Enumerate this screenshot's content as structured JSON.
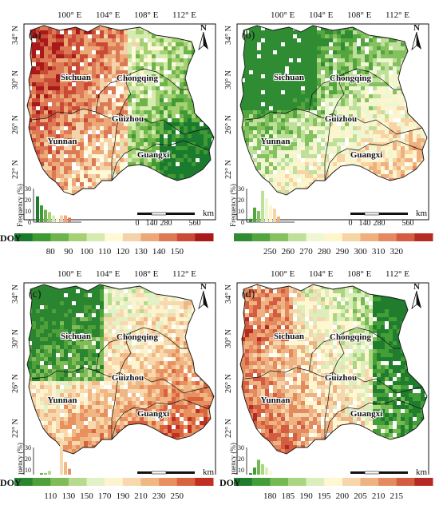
{
  "figure": {
    "top_lon_labels": [
      "100° E",
      "104° E",
      "108° E",
      "112° E"
    ],
    "left_lat_labels": [
      "34° N",
      "30° N",
      "26° N",
      "22° N"
    ],
    "north_label": "N",
    "scalebar_labels": [
      "0",
      "140",
      "280",
      "560"
    ],
    "scalebar_unit": "km",
    "hist_ylabel": "Frequency (%)",
    "hist_ticks": [
      "0",
      "10",
      "20",
      "30"
    ],
    "province_labels": [
      "Sichuan",
      "Chongqing",
      "Guizhou",
      "Yunnan",
      "Guangxi"
    ]
  },
  "panels": [
    {
      "label": "(a)",
      "colors": [
        "#1a7a2e",
        "#3f9a34",
        "#6db44a",
        "#a5d173",
        "#d6ebb0",
        "#fff9d8",
        "#f5d3aa",
        "#eda878",
        "#dd7a55",
        "#c94a35",
        "#a81a1a"
      ],
      "histogram": [
        23,
        15,
        11,
        9,
        6,
        4,
        6,
        6,
        4,
        0,
        0
      ],
      "legend": {
        "title": "DOY",
        "ticks": [
          "80",
          "90",
          "100",
          "110",
          "120",
          "130",
          "140",
          "150"
        ]
      }
    },
    {
      "label": "(b)",
      "colors": [
        "#2f8c33",
        "#53a63e",
        "#86c160",
        "#bfe09a",
        "#eef6d2",
        "#fff5cc",
        "#f7d4a3",
        "#efb07e",
        "#e58a60",
        "#d35c43",
        "#b52c25"
      ],
      "histogram": [
        3,
        13,
        10,
        28,
        21,
        15,
        12,
        5,
        0,
        0,
        0
      ],
      "legend": {
        "title": "",
        "ticks": [
          "250",
          "260",
          "270",
          "280",
          "290",
          "300",
          "310",
          "320"
        ]
      }
    },
    {
      "label": "(c)",
      "colors": [
        "#2a8530",
        "#4fa03a",
        "#7fbc58",
        "#b6da90",
        "#e3f1c7",
        "#fdf4cf",
        "#f8d9ad",
        "#f0b785",
        "#e8905f",
        "#d9623f",
        "#bf3022"
      ],
      "histogram": [
        4,
        7,
        7,
        9,
        0,
        0,
        38,
        17,
        11,
        2,
        0
      ],
      "legend": {
        "title": "DOY",
        "ticks": [
          "110",
          "130",
          "150",
          "170",
          "190",
          "210",
          "230",
          "250"
        ]
      }
    },
    {
      "label": "(d)",
      "colors": [
        "#1f7d2d",
        "#439e37",
        "#74ba53",
        "#aad682",
        "#dbeebb",
        "#fff7d2",
        "#f6d6ac",
        "#eeb283",
        "#e48a5f",
        "#d35c41",
        "#b52a22"
      ],
      "histogram": [
        7,
        12,
        19,
        15,
        12,
        9,
        4,
        2,
        0,
        0,
        0
      ],
      "legend": {
        "title": "DOY",
        "ticks": [
          "180",
          "185",
          "190",
          "195",
          "200",
          "205",
          "210",
          "215"
        ]
      }
    }
  ]
}
